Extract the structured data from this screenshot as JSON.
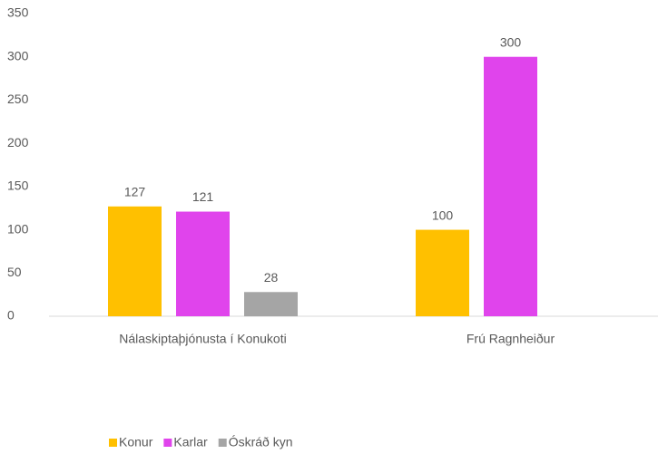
{
  "chart_data": {
    "type": "bar",
    "categories": [
      "Nálaskiptaþjónusta í Konukoti",
      "Frú Ragnheiður"
    ],
    "series": [
      {
        "name": "Konur",
        "color": "#ffc000",
        "values": [
          127,
          100
        ]
      },
      {
        "name": "Karlar",
        "color": "#e044ec",
        "values": [
          121,
          300
        ]
      },
      {
        "name": "Óskráð kyn",
        "color": "#a5a5a5",
        "values": [
          28,
          null
        ]
      }
    ],
    "ylim": [
      0,
      350
    ],
    "yticks": [
      0,
      50,
      100,
      150,
      200,
      250,
      300,
      350
    ],
    "grid": false,
    "legend": "bottom"
  }
}
